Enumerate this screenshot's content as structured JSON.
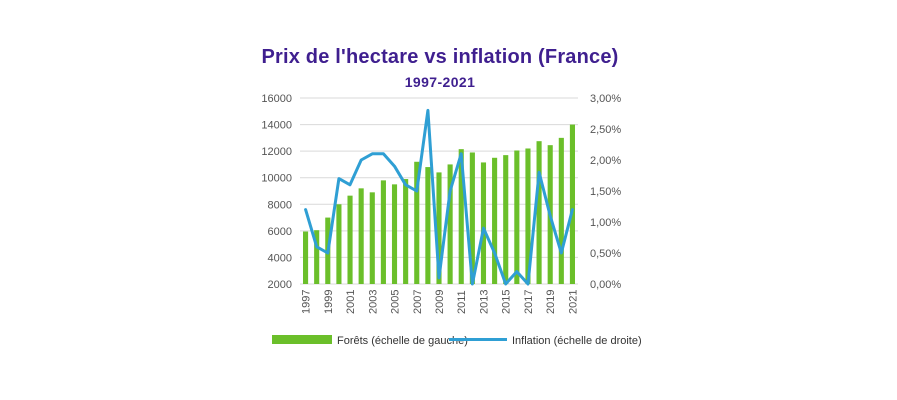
{
  "chart_data": {
    "type": "bar",
    "title": "Prix de l'hectare vs inflation (France)",
    "subtitle": "1997-2021",
    "x": [
      "1997",
      "1998",
      "1999",
      "2000",
      "2001",
      "2002",
      "2003",
      "2004",
      "2005",
      "2006",
      "2007",
      "2008",
      "2009",
      "2010",
      "2011",
      "2012",
      "2013",
      "2014",
      "2015",
      "2016",
      "2017",
      "2018",
      "2019",
      "2020",
      "2021"
    ],
    "x_tick_labels": [
      "1997",
      "1999",
      "2001",
      "2003",
      "2005",
      "2007",
      "2009",
      "2011",
      "2013",
      "2015",
      "2017",
      "2019",
      "2021"
    ],
    "series": [
      {
        "name": "Forêts (échelle de gauche)",
        "type": "bar",
        "axis": "left",
        "values": [
          5950,
          6050,
          7000,
          8000,
          8650,
          9200,
          8900,
          9800,
          9500,
          9900,
          11200,
          10800,
          10400,
          11000,
          12150,
          11900,
          11150,
          11500,
          11700,
          12050,
          12200,
          12750,
          12450,
          13000,
          14000
        ]
      },
      {
        "name": "Inflation (échelle de droite)",
        "type": "line",
        "axis": "right",
        "values": [
          1.2,
          0.6,
          0.5,
          1.7,
          1.6,
          2.0,
          2.1,
          2.1,
          1.9,
          1.6,
          1.5,
          2.8,
          0.1,
          1.5,
          2.1,
          0.0,
          0.9,
          0.5,
          0.0,
          0.2,
          0.0,
          1.8,
          1.1,
          0.5,
          1.2
        ]
      }
    ],
    "y_left": {
      "min": 2000,
      "max": 16000,
      "ticks": [
        "2000",
        "4000",
        "6000",
        "8000",
        "10000",
        "12000",
        "14000",
        "16000"
      ]
    },
    "y_right": {
      "min": 0,
      "max": 3.0,
      "ticks": [
        "0,00%",
        "0,50%",
        "1,00%",
        "1,50%",
        "2,00%",
        "2,50%",
        "3,00%"
      ]
    },
    "grid": true,
    "legend_position": "bottom",
    "colors": {
      "bars": "#6bbf2a",
      "line": "#2f9fd4",
      "title": "#3f1f8f",
      "subtitle": "#3f1f8f",
      "grid": "#d9d9d9"
    }
  }
}
